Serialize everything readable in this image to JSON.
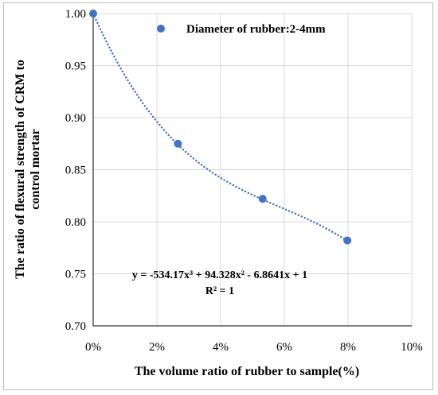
{
  "chart_data": {
    "type": "scatter",
    "x": [
      0,
      0.0266,
      0.0532,
      0.0798
    ],
    "xlabel": "The volume ratio of rubber to sample(%)",
    "ylabel_lines": [
      "The ratio of flexural strength of CRM to",
      "control mortar"
    ],
    "xlim": [
      0,
      0.1
    ],
    "ylim": [
      0.7,
      1.0
    ],
    "xticks": [
      "0%",
      "2%",
      "4%",
      "6%",
      "8%",
      "10%"
    ],
    "yticks": [
      "0.70",
      "0.75",
      "0.80",
      "0.85",
      "0.90",
      "0.95",
      "1.00"
    ],
    "grid": true,
    "series": [
      {
        "name": "Diameter of rubber:2-4mm",
        "color": "#4472c4",
        "values": [
          1.0,
          0.875,
          0.822,
          0.782
        ]
      }
    ],
    "trendline": {
      "type": "polynomial-3",
      "coefficients": [
        -534.17,
        94.328,
        -6.8641,
        1
      ],
      "style": "dotted",
      "color": "#4472c4"
    },
    "annotations": {
      "equation": "y = -534.17x³ + 94.328x² - 6.8641x + 1",
      "r_squared": "R² = 1"
    },
    "legend_placement": "top-right"
  }
}
